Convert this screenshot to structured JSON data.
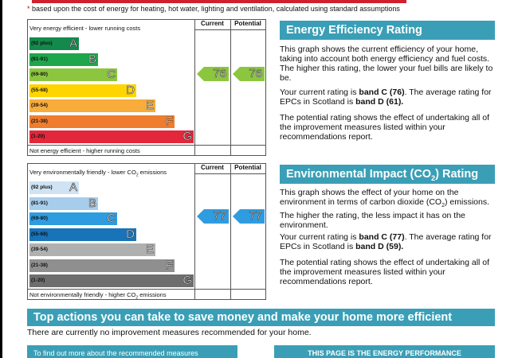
{
  "footnote": {
    "star": "*",
    "text": "based upon the cost of energy for heating, hot water, lighting and ventilation, calculated using standard assumptions"
  },
  "energy_chart": {
    "header": "Very energy efficient - lower running costs",
    "footer": "Not energy efficient - higher running costs",
    "current_label": "Current",
    "potential_label": "Potential",
    "bands": [
      {
        "range": "(92 plus)",
        "letter": "A",
        "color": "#138a4c"
      },
      {
        "range": "(81-91)",
        "letter": "B",
        "color": "#1fa64a"
      },
      {
        "range": "(69-80)",
        "letter": "C",
        "color": "#8cc63f"
      },
      {
        "range": "(55-68)",
        "letter": "D",
        "color": "#ffd500"
      },
      {
        "range": "(39-54)",
        "letter": "E",
        "color": "#f7ac3b"
      },
      {
        "range": "(21-38)",
        "letter": "F",
        "color": "#ef7d2d"
      },
      {
        "range": "(1-20)",
        "letter": "G",
        "color": "#e2283a"
      }
    ],
    "current": "76",
    "potential": "76",
    "arrow_color": "#8cc63f"
  },
  "environment_chart": {
    "header_pre": "Very environmentally friendly - lower CO",
    "header_sub": "2",
    "header_post": " emissions",
    "footer_pre": "Not environmentally friendly - higher CO",
    "footer_sub": "2",
    "footer_post": " emissions",
    "current_label": "Current",
    "potential_label": "Potential",
    "bands": [
      {
        "range": "(92 plus)",
        "letter": "A",
        "color": "#cfe3f4"
      },
      {
        "range": "(81-91)",
        "letter": "B",
        "color": "#a7cdec"
      },
      {
        "range": "(69-80)",
        "letter": "C",
        "color": "#2f9ce0"
      },
      {
        "range": "(55-68)",
        "letter": "D",
        "color": "#1873b8"
      },
      {
        "range": "(39-54)",
        "letter": "E",
        "color": "#b0b0b0"
      },
      {
        "range": "(21-38)",
        "letter": "F",
        "color": "#8f8f8f"
      },
      {
        "range": "(1-20)",
        "letter": "G",
        "color": "#6e6e6e"
      }
    ],
    "current": "77",
    "potential": "77",
    "arrow_color": "#2f9ce0"
  },
  "energy_panel": {
    "title": "Energy Efficiency Rating",
    "p1": "This graph shows the current efficiency of your home, taking into account both energy efficiency and fuel costs. The higher this rating, the lower your fuel bills are likely to be.",
    "p2_pre": "Your current rating is ",
    "p2_b1": "band C (76)",
    "p2_mid": ". The average rating for EPCs in Scotland is ",
    "p2_b2": "band D (61).",
    "p3": "The potential rating shows the effect of undertaking all of the improvement measures listed within your recommendations report."
  },
  "env_panel": {
    "title_pre": "Environmental Impact (CO",
    "title_sub": "2",
    "title_post": ") Rating",
    "p1_pre": "This graph shows the effect of your home on the environment in terms of carbon dioxide (CO",
    "p1_sub": "2",
    "p1_post": ") emissions. The higher the rating, the less impact it has on the environment.",
    "p2_pre": "Your current rating is ",
    "p2_b1": "band C (77)",
    "p2_mid": ". The average rating for EPCs in Scotland is ",
    "p2_b2": "band D (59).",
    "p3": "The potential rating shows the effect of undertaking all of the improvement measures listed within your recommendations report."
  },
  "actions": {
    "title": "Top actions you can take to save money and make your home more efficient",
    "text": "There are currently no improvement measures recommended for your home."
  },
  "bottom": {
    "left": "To find out more about the recommended measures",
    "right": "THIS PAGE IS THE ENERGY PERFORMANCE"
  }
}
